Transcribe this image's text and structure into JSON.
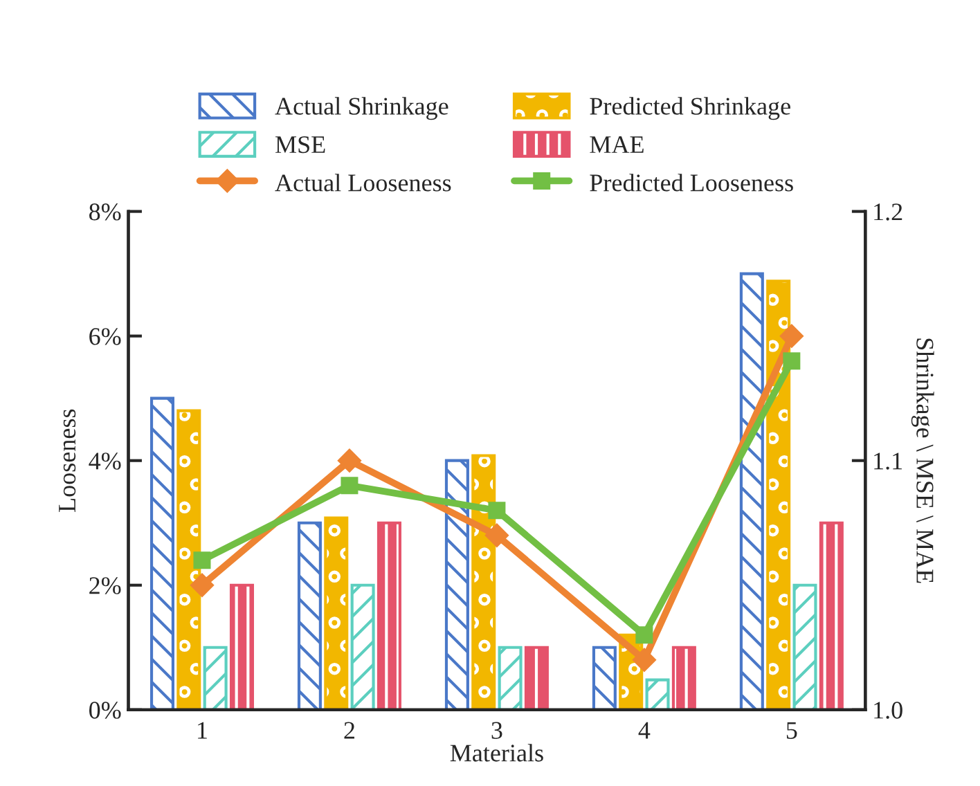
{
  "chart_data": {
    "type": "bar",
    "xlabel": "Materials",
    "ylabel": "Looseness",
    "y2label": "Shrinkage \\ MSE \\ MAE",
    "categories": [
      "1",
      "2",
      "3",
      "4",
      "5"
    ],
    "series": [
      {
        "name": "Actual Shrinkage",
        "axis": "y2",
        "color": "#4a78c8",
        "values": [
          1.125,
          1.075,
          1.1,
          1.025,
          1.175
        ]
      },
      {
        "name": "Predicted Shrinkage",
        "axis": "y2",
        "color": "#f2b700",
        "values": [
          1.12,
          1.077,
          1.102,
          1.03,
          1.172
        ]
      },
      {
        "name": "MSE",
        "axis": "y2",
        "color": "#5ccfbf",
        "values": [
          1.025,
          1.05,
          1.025,
          1.012,
          1.05
        ]
      },
      {
        "name": "MAE",
        "axis": "y2",
        "color": "#e5536b",
        "values": [
          1.05,
          1.075,
          1.025,
          1.025,
          1.075
        ]
      },
      {
        "name": "Actual Looseness",
        "type": "line",
        "axis": "y",
        "color": "#ee8432",
        "marker": "diamond",
        "values": [
          2,
          4,
          2.8,
          0.8,
          6
        ]
      },
      {
        "name": "Predicted Looseness",
        "type": "line",
        "axis": "y",
        "color": "#72bf44",
        "marker": "square",
        "values": [
          2.4,
          3.6,
          3.2,
          1.2,
          5.6
        ]
      }
    ],
    "ylim": [
      0,
      8
    ],
    "yticks": [
      {
        "value": 0,
        "label": "0%"
      },
      {
        "value": 2,
        "label": "2%"
      },
      {
        "value": 4,
        "label": "4%"
      },
      {
        "value": 6,
        "label": "6%"
      },
      {
        "value": 8,
        "label": "8%"
      }
    ],
    "y2lim": [
      1.0,
      1.2
    ],
    "y2ticks": [
      {
        "value": 1.0,
        "label": "1.0"
      },
      {
        "value": 1.1,
        "label": "1.1"
      },
      {
        "value": 1.2,
        "label": "1.2"
      }
    ],
    "legend": "top",
    "grid": false,
    "line_style": "solid"
  }
}
